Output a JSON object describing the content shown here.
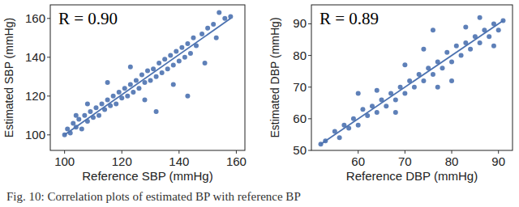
{
  "chart_data": [
    {
      "type": "scatter",
      "color": "#4c72b0",
      "marker": "circle",
      "grid": false,
      "annotation": "R = 0.90",
      "x_label": "Reference SBP (mmHg)",
      "y_label": "Estimated SBP (mmHg)",
      "x": [
        100,
        101,
        102,
        103,
        104,
        105,
        106,
        107,
        108,
        109,
        110,
        111,
        112,
        113,
        114,
        115,
        116,
        117,
        118,
        119,
        120,
        121,
        122,
        123,
        124,
        125,
        126,
        127,
        128,
        129,
        130,
        131,
        132,
        133,
        134,
        135,
        136,
        137,
        138,
        139,
        140,
        141,
        142,
        143,
        144,
        145,
        146,
        148,
        150,
        152,
        154,
        156,
        158,
        143,
        132,
        115,
        128,
        149,
        123,
        138,
        153,
        108,
        104
      ],
      "values": [
        100,
        103,
        101,
        106,
        104,
        108,
        103,
        110,
        107,
        112,
        109,
        114,
        110,
        116,
        113,
        118,
        115,
        120,
        116,
        122,
        119,
        124,
        120,
        126,
        122,
        128,
        124,
        131,
        127,
        133,
        128,
        134,
        130,
        137,
        132,
        139,
        134,
        141,
        136,
        143,
        138,
        145,
        140,
        147,
        142,
        150,
        146,
        152,
        155,
        157,
        163,
        160,
        161,
        120,
        112,
        127,
        118,
        137,
        135,
        126,
        150,
        116,
        110
      ],
      "fit": {
        "x": [
          100,
          158
        ],
        "values": [
          100,
          160
        ]
      },
      "xlim": [
        95,
        163
      ],
      "ylim": [
        92,
        167
      ],
      "xticks": [
        100,
        120,
        140,
        160
      ],
      "yticks": [
        100,
        120,
        140,
        160
      ]
    },
    {
      "type": "scatter",
      "color": "#4c72b0",
      "marker": "circle",
      "grid": false,
      "annotation": "R = 0.89",
      "x_label": "Reference DBP (mmHg)",
      "y_label": "Estimated DBP (mmHg)",
      "x": [
        52,
        53,
        55,
        56,
        57,
        58,
        59,
        60,
        61,
        62,
        63,
        64,
        65,
        66,
        67,
        68,
        69,
        70,
        71,
        72,
        73,
        74,
        75,
        76,
        77,
        78,
        79,
        80,
        81,
        82,
        83,
        84,
        85,
        86,
        87,
        88,
        89,
        90,
        91,
        60,
        68,
        74,
        80,
        86,
        70,
        64,
        77,
        83,
        89,
        76
      ],
      "values": [
        52,
        53,
        56,
        54,
        58,
        57,
        60,
        58,
        63,
        61,
        64,
        62,
        66,
        64,
        68,
        66,
        70,
        68,
        72,
        70,
        74,
        72,
        76,
        74,
        78,
        76,
        81,
        78,
        83,
        80,
        84,
        82,
        86,
        84,
        88,
        86,
        90,
        88,
        91,
        68,
        62,
        82,
        72,
        92,
        77,
        69,
        70,
        89,
        83,
        88
      ],
      "fit": {
        "x": [
          52,
          91
        ],
        "values": [
          52,
          91
        ]
      },
      "xlim": [
        50,
        93
      ],
      "ylim": [
        50,
        96
      ],
      "xticks": [
        60,
        70,
        80,
        90
      ],
      "yticks": [
        50,
        60,
        70,
        80,
        90
      ]
    }
  ],
  "caption": "Fig. 10: Correlation plots of estimated BP with reference BP"
}
